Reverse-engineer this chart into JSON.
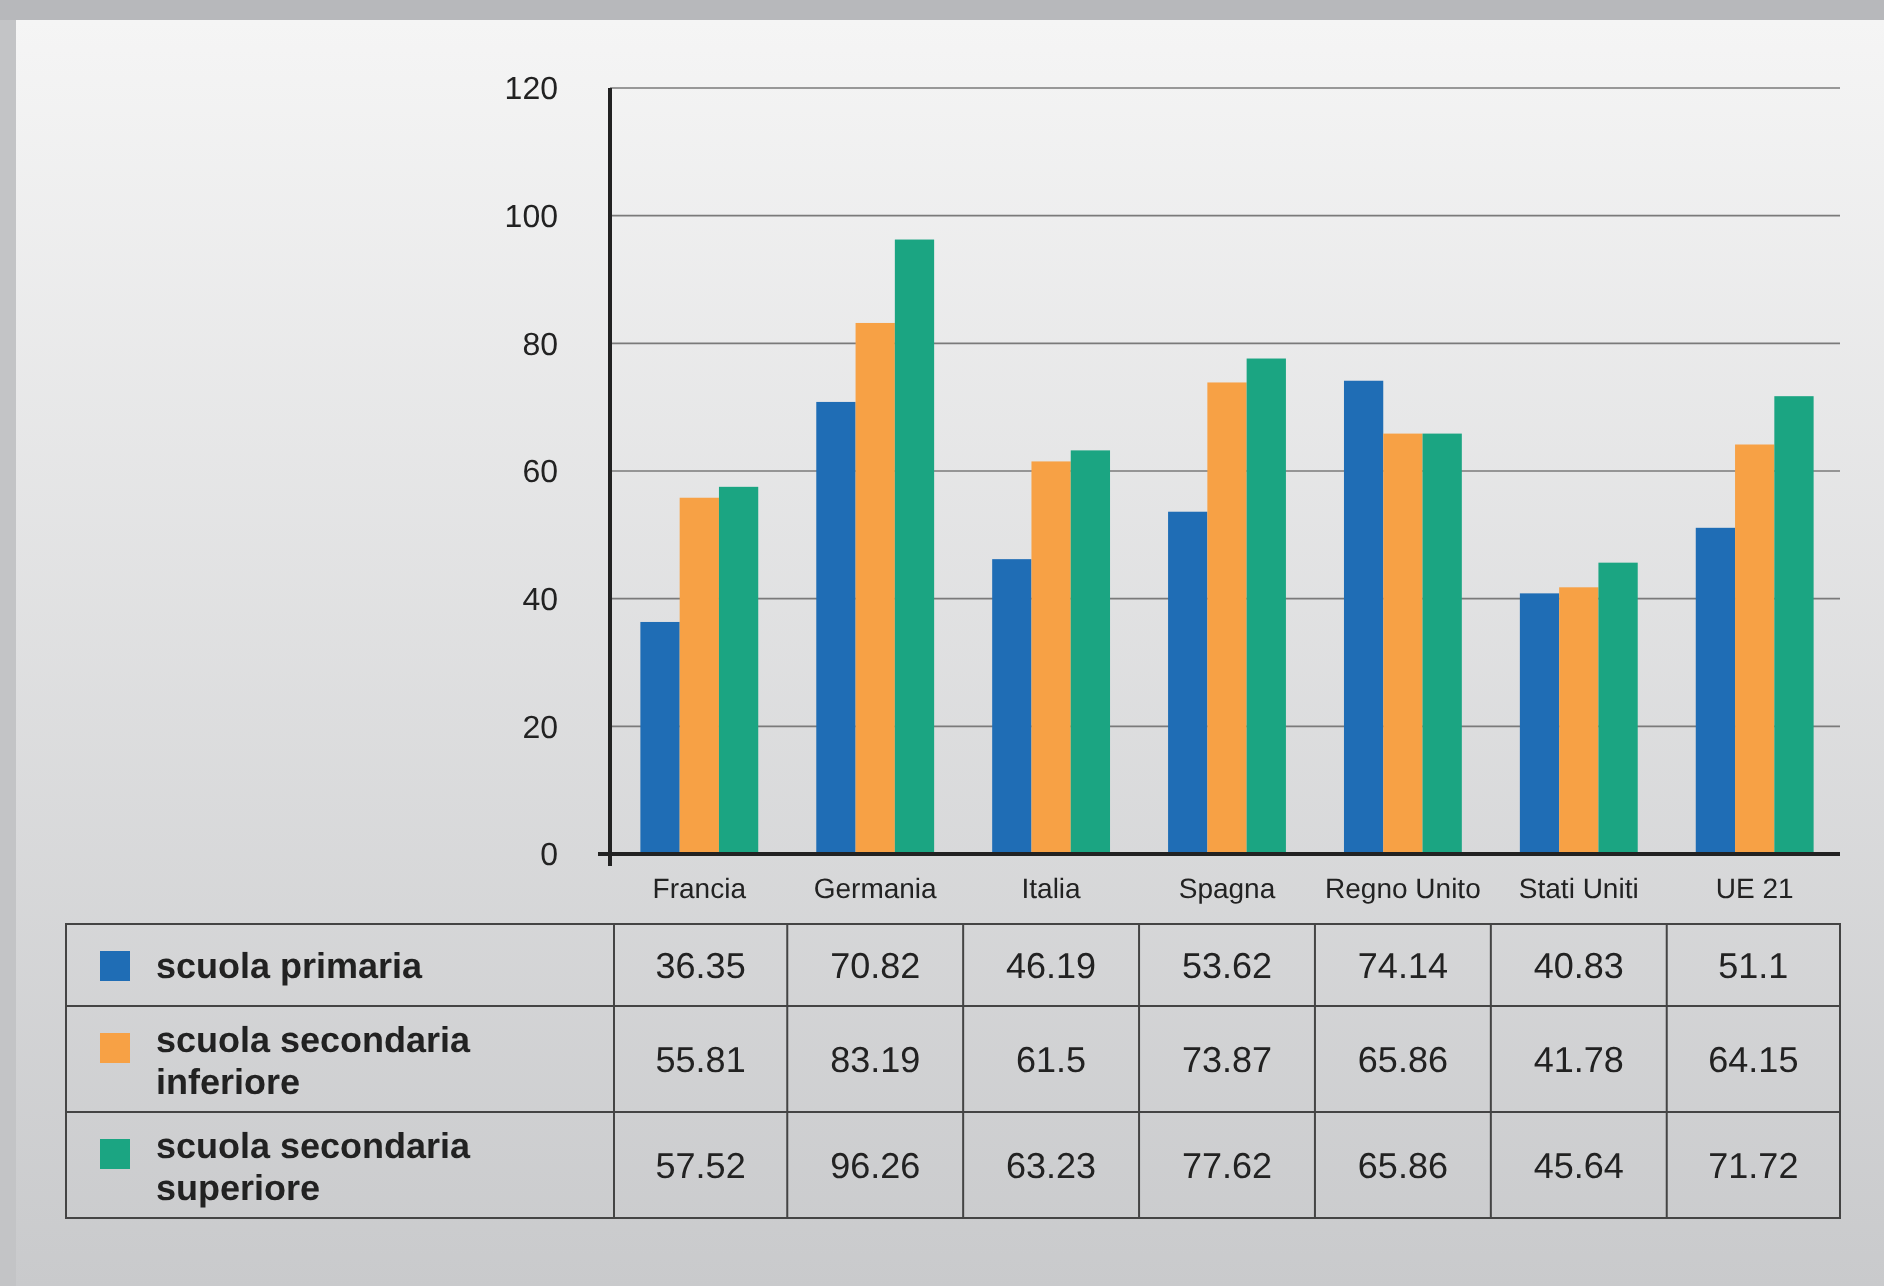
{
  "chart_data": {
    "type": "bar",
    "categories": [
      "Francia",
      "Germania",
      "Italia",
      "Spagna",
      "Regno Unito",
      "Stati Uniti",
      "UE 21"
    ],
    "series": [
      {
        "name": "scuola primaria",
        "color": "#1f6db5",
        "values": [
          36.35,
          70.82,
          46.19,
          53.62,
          74.14,
          40.83,
          51.1
        ]
      },
      {
        "name": "scuola secondaria inferiore",
        "color": "#f7a145",
        "values": [
          55.81,
          83.19,
          61.5,
          73.87,
          65.86,
          41.78,
          64.15
        ]
      },
      {
        "name": "scuola secondaria superiore",
        "color": "#1ba582",
        "values": [
          57.52,
          96.26,
          63.23,
          77.62,
          65.86,
          45.64,
          71.72
        ]
      }
    ],
    "ylim": [
      0,
      120
    ],
    "yticks": [
      0,
      20,
      40,
      60,
      80,
      100,
      120
    ],
    "grid": "y",
    "legend": "bottom left",
    "data_labels": true
  }
}
